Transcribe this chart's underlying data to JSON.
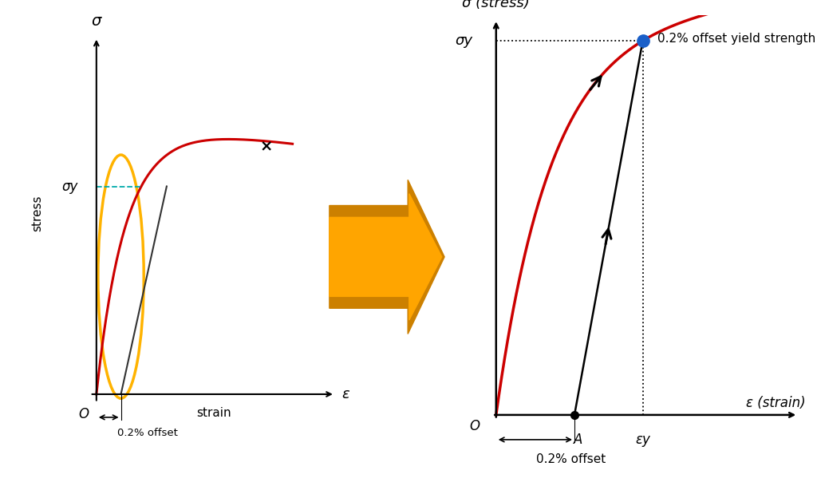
{
  "bg_color": "#ffffff",
  "left_diagram": {
    "title_sigma": "σ",
    "xlabel": "ε",
    "ylabel": "stress",
    "strain_label": "strain",
    "sigma_y_label": "σy",
    "origin_label": "O",
    "offset_label": "0.2% offset",
    "x_mark": "×"
  },
  "right_diagram": {
    "title_sigma": "σ (stress)",
    "xlabel": "ε (strain)",
    "sigma_y_label": "σy",
    "epsilon_y_label": "εy",
    "origin_label": "O",
    "point_A_label": "A",
    "offset_label": "0.2% offset",
    "annotation": "0.2% offset yield strength"
  },
  "arrow_fill_color": "#FFA500",
  "arrow_edge_color": "#CC8000",
  "curve_color": "#cc0000",
  "dot_color": "#1a5fc8",
  "sigma_y_line_color": "#00aaaa"
}
